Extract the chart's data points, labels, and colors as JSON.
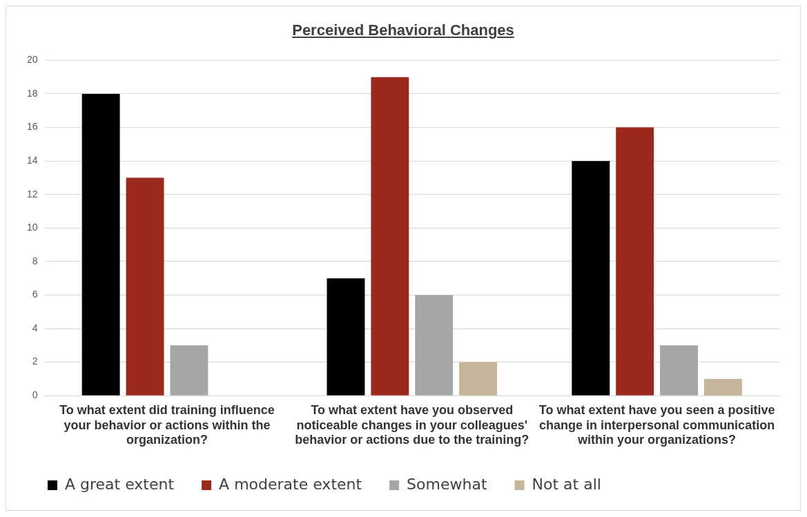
{
  "chart_data": {
    "type": "bar",
    "title": "Perceived Behavioral Changes",
    "categories": [
      "To what extent did training influence your behavior or actions within the organization?",
      "To what extent have you observed noticeable changes in your colleagues' behavior or actions due to the training?",
      "To what extent have you seen a positive change in interpersonal communication within your organizations?"
    ],
    "series": [
      {
        "name": "A great extent",
        "color": "#000000",
        "values": [
          18,
          7,
          14
        ]
      },
      {
        "name": "A moderate extent",
        "color": "#9b2a1c",
        "values": [
          13,
          19,
          16
        ]
      },
      {
        "name": "Somewhat",
        "color": "#a6a6a6",
        "values": [
          3,
          6,
          3
        ]
      },
      {
        "name": "Not at all",
        "color": "#c4b59b",
        "values": [
          0,
          2,
          1
        ]
      }
    ],
    "ylim": [
      0,
      20
    ],
    "yticks": [
      0,
      2,
      4,
      6,
      8,
      10,
      12,
      14,
      16,
      18,
      20
    ],
    "grid": "y",
    "legend": "bottom"
  }
}
